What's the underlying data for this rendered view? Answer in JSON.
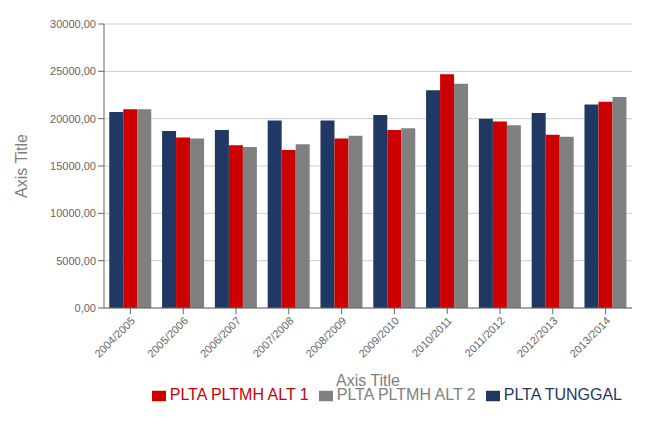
{
  "chart_data": {
    "type": "bar",
    "categories": [
      "2004/2005",
      "2005/2006",
      "2006/2007",
      "2007/2008",
      "2008/2009",
      "2009/2010",
      "2010/2011",
      "2011/2012",
      "2012/2013",
      "2013/2014"
    ],
    "series": [
      {
        "name": "PLTA TUNGGAL",
        "color": "#1f3864",
        "values": [
          20700,
          18700,
          18800,
          19800,
          19800,
          20400,
          23000,
          20000,
          20600,
          21500
        ]
      },
      {
        "name": "PLTA PLTMH ALT 1",
        "color": "#cc0000",
        "values": [
          21000,
          18000,
          17200,
          16700,
          17900,
          18800,
          24700,
          19700,
          18300,
          21800
        ]
      },
      {
        "name": "PLTA PLTMH ALT 2",
        "color": "#808080",
        "values": [
          21000,
          17900,
          17000,
          17300,
          18200,
          19000,
          23700,
          19300,
          18100,
          22300
        ]
      }
    ],
    "xlabel": "Axis Title",
    "ylabel": "Axis Title",
    "ylim": [
      0,
      30000
    ],
    "yticks": [
      {
        "value": 0,
        "label": "0,00"
      },
      {
        "value": 5000,
        "label": "5000,00"
      },
      {
        "value": 10000,
        "label": "10000,00"
      },
      {
        "value": 15000,
        "label": "15000,00"
      },
      {
        "value": 20000,
        "label": "20000,00"
      },
      {
        "value": 25000,
        "label": "25000,00"
      },
      {
        "value": 30000,
        "label": "30000,00"
      }
    ],
    "grid": true,
    "legend": "lower right"
  }
}
